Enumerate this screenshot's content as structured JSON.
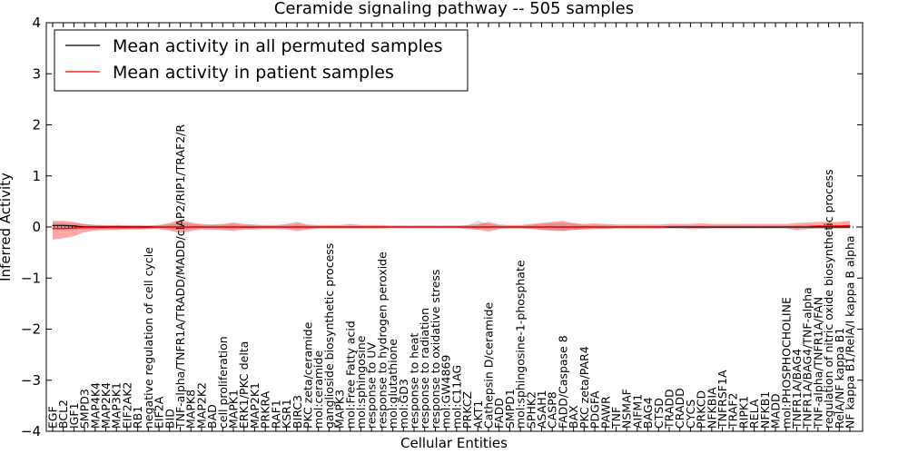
{
  "chart_data": {
    "type": "line",
    "title": "Ceramide signaling pathway -- 505 samples",
    "xlabel": "Cellular Entities",
    "ylabel": "Inferred Activity",
    "ylim": [
      -4,
      4
    ],
    "yticks": [
      -4,
      -3,
      -2,
      -1,
      0,
      1,
      2,
      3,
      4
    ],
    "ytick_labels": [
      "−4",
      "−3",
      "−2",
      "−1",
      "0",
      "1",
      "2",
      "3",
      "4"
    ],
    "grid": false,
    "legend_position": "top-left",
    "categories": [
      "EGF",
      "BCL2",
      "IGF1",
      "SMPD3",
      "MAP4K4",
      "MAP2K4",
      "MAP3K1",
      "EIF2AK2",
      "RB1",
      "negative regulation of cell cycle",
      "EIF2A",
      "BID",
      "TNF-alpha/TNFR1A/TRADD/MADD/cIAP2/RIP1/TRAF2/R",
      "MAPK8",
      "MAP2K2",
      "BAD",
      "cell proliferation",
      "MAPK1",
      "ERK1/PKC delta",
      "MAP2K1",
      "PRKRA",
      "RAF1",
      "KSR1",
      "BIRC3",
      "PKC zeta/ceramide",
      "mol:ceramide",
      "ganglioside biosynthetic process",
      "MAPK3",
      "mol:Free Fatty acid",
      "mol:sphingosine",
      "response to UV",
      "response to hydrogen peroxide",
      "mol:glutathione",
      "mol:GD3",
      "response to heat",
      "response to radiation",
      "response to oxidative stress",
      "mol:GW4869",
      "mol:C11AG",
      "PRKCZ",
      "AKT1",
      "Cathepsin D/ceramide",
      "FADD",
      "SMPD1",
      "mol:sphingosine-1-phosphate",
      "SPHK2",
      "ASAH1",
      "CASP8",
      "FADD/Caspase 8",
      "BAX",
      "PKC zeta/PAR4",
      "PDGFA",
      "PAWR",
      "TNF",
      "NSMAF",
      "AIFM1",
      "BAG4",
      "CTSD",
      "TRADD",
      "CRADD",
      "CYCS",
      "PRKCD",
      "NFKBIA",
      "TNFRSF1A",
      "TRAF2",
      "RIPK1",
      "RELA",
      "NFKB1",
      "MADD",
      "mol:PHOSPHOCHOLINE",
      "TNFR1A/BAG4",
      "TNFR1A/BAG4/TNF-alpha",
      "TNF-alpha/TNFR1A/FAN",
      "regulation of nitric oxide biosynthetic process",
      "RelA/NF kappa B1",
      "NF kappa B1/RelA/I kappa B alpha"
    ],
    "series": [
      {
        "name": "Mean activity in all permuted samples",
        "color": "#000000",
        "values": [
          0.03,
          0.03,
          0.02,
          0.0,
          0.0,
          0.0,
          0.0,
          0.0,
          0.0,
          0.0,
          0.0,
          0.0,
          0.0,
          0.0,
          0.0,
          0.0,
          0.0,
          0.0,
          0.0,
          0.0,
          0.0,
          0.0,
          0.0,
          0.0,
          0.0,
          0.0,
          0.0,
          0.0,
          0.0,
          0.0,
          0.0,
          0.0,
          0.0,
          0.0,
          0.0,
          0.0,
          0.0,
          0.0,
          0.0,
          0.0,
          0.0,
          0.0,
          0.0,
          0.0,
          0.0,
          0.0,
          0.0,
          0.0,
          0.0,
          0.0,
          0.0,
          0.0,
          0.0,
          0.0,
          0.0,
          0.0,
          0.0,
          0.0,
          0.0,
          0.0,
          0.0,
          0.0,
          0.0,
          0.0,
          0.0,
          0.0,
          0.0,
          0.0,
          0.0,
          0.0,
          0.0,
          0.0,
          0.0,
          0.0,
          0.0,
          0.0
        ],
        "band_low": [
          -0.06,
          -0.06,
          -0.06,
          -0.05,
          -0.04,
          -0.03,
          -0.03,
          -0.03,
          -0.03,
          -0.02,
          -0.02,
          -0.04,
          -0.06,
          -0.04,
          -0.03,
          -0.03,
          -0.03,
          -0.04,
          -0.03,
          -0.03,
          -0.02,
          -0.02,
          -0.02,
          -0.04,
          -0.03,
          -0.02,
          -0.02,
          -0.02,
          -0.02,
          -0.02,
          -0.02,
          -0.02,
          -0.01,
          -0.01,
          -0.01,
          -0.01,
          -0.01,
          -0.01,
          -0.01,
          -0.02,
          -0.05,
          -0.03,
          -0.02,
          -0.02,
          -0.02,
          -0.03,
          -0.05,
          -0.06,
          -0.07,
          -0.05,
          -0.04,
          -0.03,
          -0.03,
          -0.02,
          -0.02,
          -0.02,
          -0.02,
          -0.02,
          -0.02,
          -0.02,
          -0.02,
          -0.02,
          -0.02,
          -0.02,
          -0.02,
          -0.02,
          -0.02,
          -0.02,
          -0.02,
          -0.02,
          -0.03,
          -0.03,
          -0.02,
          -0.02,
          -0.02,
          -0.02
        ],
        "band_high": [
          0.08,
          0.08,
          0.07,
          0.05,
          0.04,
          0.03,
          0.03,
          0.03,
          0.03,
          0.02,
          0.03,
          0.05,
          0.09,
          0.06,
          0.04,
          0.04,
          0.04,
          0.05,
          0.04,
          0.03,
          0.02,
          0.02,
          0.03,
          0.05,
          0.03,
          0.02,
          0.02,
          0.02,
          0.02,
          0.02,
          0.02,
          0.02,
          0.01,
          0.01,
          0.01,
          0.01,
          0.01,
          0.01,
          0.01,
          0.03,
          0.12,
          0.06,
          0.03,
          0.02,
          0.02,
          0.04,
          0.06,
          0.07,
          0.08,
          0.06,
          0.04,
          0.04,
          0.03,
          0.02,
          0.02,
          0.02,
          0.02,
          0.02,
          0.02,
          0.02,
          0.02,
          0.02,
          0.02,
          0.02,
          0.02,
          0.02,
          0.02,
          0.02,
          0.02,
          0.02,
          0.03,
          0.04,
          0.03,
          0.02,
          0.02,
          0.02
        ]
      },
      {
        "name": "Mean activity in patient samples",
        "color": "#ff0000",
        "values": [
          -0.03,
          -0.03,
          -0.02,
          -0.01,
          -0.01,
          -0.01,
          -0.01,
          -0.01,
          -0.01,
          -0.01,
          0.0,
          0.0,
          0.0,
          0.0,
          0.0,
          0.0,
          0.0,
          0.0,
          0.0,
          0.0,
          0.0,
          0.0,
          0.0,
          0.0,
          0.0,
          0.0,
          0.0,
          0.0,
          0.0,
          0.0,
          0.0,
          0.0,
          0.0,
          0.0,
          0.0,
          0.0,
          0.0,
          0.0,
          0.0,
          0.0,
          0.0,
          0.0,
          0.0,
          0.0,
          0.0,
          0.0,
          0.0,
          0.0,
          0.0,
          0.0,
          0.0,
          0.0,
          0.0,
          0.0,
          0.0,
          0.0,
          0.0,
          0.0,
          0.01,
          0.01,
          0.01,
          0.01,
          0.01,
          0.01,
          0.01,
          0.01,
          0.01,
          0.01,
          0.01,
          0.01,
          0.01,
          0.01,
          0.02,
          0.02,
          0.02,
          0.03
        ],
        "band_low": [
          -0.25,
          -0.22,
          -0.18,
          -0.1,
          -0.07,
          -0.06,
          -0.06,
          -0.05,
          -0.05,
          -0.04,
          -0.04,
          -0.07,
          -0.12,
          -0.08,
          -0.05,
          -0.05,
          -0.06,
          -0.08,
          -0.05,
          -0.05,
          -0.04,
          -0.04,
          -0.05,
          -0.08,
          -0.05,
          -0.03,
          -0.03,
          -0.03,
          -0.03,
          -0.03,
          -0.03,
          -0.03,
          -0.02,
          -0.02,
          -0.02,
          -0.02,
          -0.02,
          -0.02,
          -0.02,
          -0.04,
          -0.05,
          -0.09,
          -0.04,
          -0.03,
          -0.03,
          -0.04,
          -0.06,
          -0.07,
          -0.08,
          -0.06,
          -0.05,
          -0.04,
          -0.04,
          -0.03,
          -0.03,
          -0.03,
          -0.03,
          -0.03,
          -0.03,
          -0.03,
          -0.04,
          -0.04,
          -0.03,
          -0.03,
          -0.03,
          -0.03,
          -0.03,
          -0.03,
          -0.03,
          -0.03,
          -0.06,
          -0.04,
          -0.03,
          -0.03,
          -0.03,
          -0.03
        ],
        "band_high": [
          0.12,
          0.12,
          0.1,
          0.06,
          0.04,
          0.04,
          0.04,
          0.03,
          0.03,
          0.03,
          0.04,
          0.08,
          0.14,
          0.09,
          0.06,
          0.05,
          0.06,
          0.09,
          0.06,
          0.05,
          0.04,
          0.04,
          0.06,
          0.1,
          0.05,
          0.04,
          0.04,
          0.04,
          0.06,
          0.04,
          0.04,
          0.04,
          0.03,
          0.03,
          0.03,
          0.03,
          0.03,
          0.03,
          0.03,
          0.04,
          0.05,
          0.1,
          0.05,
          0.04,
          0.04,
          0.06,
          0.08,
          0.1,
          0.12,
          0.08,
          0.06,
          0.07,
          0.06,
          0.05,
          0.05,
          0.05,
          0.05,
          0.05,
          0.06,
          0.06,
          0.06,
          0.07,
          0.06,
          0.06,
          0.06,
          0.06,
          0.06,
          0.06,
          0.06,
          0.06,
          0.08,
          0.09,
          0.1,
          0.1,
          0.1,
          0.12
        ]
      }
    ]
  },
  "colors": {
    "permuted_band": "#aaaaaa",
    "patient_band": "#ff0000",
    "axis": "#000000"
  }
}
